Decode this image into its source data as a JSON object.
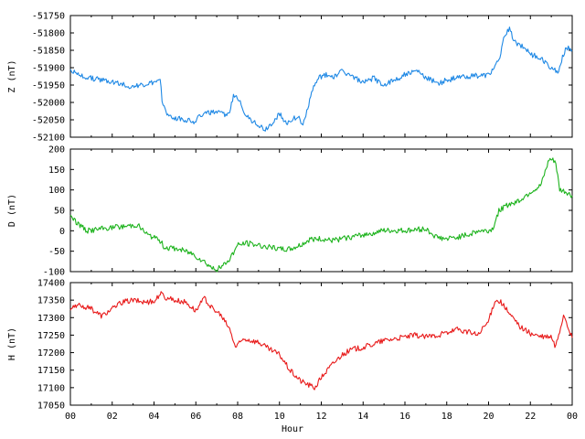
{
  "chart_data": [
    {
      "type": "line",
      "ylabel": "Z (nT)",
      "ylim": [
        -52100,
        -51750
      ],
      "yticks": [
        -51750,
        -51800,
        -51850,
        -51900,
        -51950,
        -52000,
        -52050,
        -52100
      ],
      "color": "#1e88e5",
      "x": [
        0,
        0.3,
        1,
        2,
        3,
        4.3,
        4.4,
        4.7,
        5.5,
        6,
        6.2,
        6.5,
        7,
        7.6,
        7.8,
        8.1,
        8.4,
        8.9,
        9.3,
        9.8,
        10,
        10.3,
        10.6,
        10.9,
        11.1,
        11.6,
        11.9,
        12.2,
        12.6,
        13,
        13.5,
        14,
        14.5,
        15,
        15.7,
        16,
        16.6,
        17,
        17.7,
        18,
        18.5,
        19,
        20,
        20.5,
        20.8,
        21,
        21.3,
        21.8,
        22,
        22.5,
        23,
        23.3,
        23.7,
        24
      ],
      "y": [
        -51905,
        -51920,
        -51930,
        -51940,
        -51955,
        -51940,
        -52000,
        -52040,
        -52050,
        -52055,
        -52035,
        -52030,
        -52030,
        -52035,
        -51980,
        -51990,
        -52040,
        -52060,
        -52080,
        -52050,
        -52030,
        -52060,
        -52050,
        -52040,
        -52070,
        -51960,
        -51930,
        -51920,
        -51925,
        -51910,
        -51925,
        -51945,
        -51930,
        -51950,
        -51930,
        -51920,
        -51910,
        -51930,
        -51945,
        -51935,
        -51930,
        -51925,
        -51920,
        -51880,
        -51800,
        -51790,
        -51830,
        -51845,
        -51860,
        -51875,
        -51900,
        -51915,
        -51840,
        -51850
      ]
    },
    {
      "type": "line",
      "ylabel": "D (nT)",
      "ylim": [
        -100,
        200
      ],
      "yticks": [
        200,
        150,
        100,
        50,
        0,
        -50,
        -100
      ],
      "color": "#1db31d",
      "x": [
        0,
        0.3,
        0.8,
        1.5,
        2.5,
        3.2,
        3.7,
        4.3,
        4.5,
        5.2,
        5.8,
        6.4,
        6.9,
        7.2,
        7.6,
        8,
        8.4,
        9,
        9.5,
        10,
        10.5,
        11,
        11.5,
        12,
        12.5,
        13,
        13.5,
        14,
        15,
        16,
        17,
        17.5,
        18,
        18.5,
        19,
        19.5,
        20,
        20.2,
        20.5,
        21,
        21.5,
        22,
        22.5,
        22.9,
        23.2,
        23.4,
        23.7,
        24
      ],
      "y": [
        40,
        20,
        0,
        5,
        10,
        15,
        -10,
        -25,
        -40,
        -45,
        -55,
        -75,
        -95,
        -90,
        -70,
        -35,
        -30,
        -35,
        -40,
        -45,
        -45,
        -35,
        -20,
        -20,
        -25,
        -20,
        -15,
        -10,
        0,
        0,
        5,
        -15,
        -20,
        -15,
        -10,
        0,
        0,
        5,
        50,
        65,
        75,
        95,
        110,
        175,
        170,
        100,
        95,
        85
      ]
    },
    {
      "type": "line",
      "ylabel": "H (nT)",
      "ylim": [
        17050,
        17400
      ],
      "yticks": [
        17400,
        17350,
        17300,
        17250,
        17200,
        17150,
        17100,
        17050
      ],
      "color": "#e81a1a",
      "x": [
        0,
        0.5,
        1,
        1.5,
        2,
        2.5,
        3,
        3.5,
        4,
        4.3,
        4.6,
        5,
        5.5,
        6,
        6.4,
        6.8,
        7.2,
        7.6,
        7.9,
        8.3,
        9,
        9.5,
        10,
        10.5,
        11,
        11.5,
        11.7,
        12,
        12.5,
        13,
        13.5,
        14,
        14.5,
        15,
        15.5,
        16,
        16.5,
        17,
        17.5,
        18,
        18.5,
        19,
        19.5,
        20,
        20.3,
        20.6,
        21,
        21.5,
        22,
        22.5,
        23,
        23.2,
        23.6,
        24
      ],
      "y": [
        17325,
        17335,
        17325,
        17305,
        17325,
        17345,
        17350,
        17345,
        17345,
        17370,
        17355,
        17350,
        17345,
        17320,
        17355,
        17325,
        17305,
        17270,
        17215,
        17240,
        17230,
        17210,
        17195,
        17150,
        17120,
        17105,
        17100,
        17130,
        17165,
        17195,
        17210,
        17215,
        17225,
        17235,
        17240,
        17245,
        17250,
        17245,
        17250,
        17255,
        17265,
        17260,
        17250,
        17290,
        17350,
        17345,
        17310,
        17275,
        17255,
        17245,
        17245,
        17215,
        17310,
        17240
      ]
    }
  ],
  "x_axis": {
    "label": "Hour",
    "xlim": [
      0,
      24
    ],
    "tick_labels": [
      "00",
      "02",
      "04",
      "06",
      "08",
      "10",
      "12",
      "14",
      "16",
      "18",
      "20",
      "22",
      "00"
    ]
  }
}
